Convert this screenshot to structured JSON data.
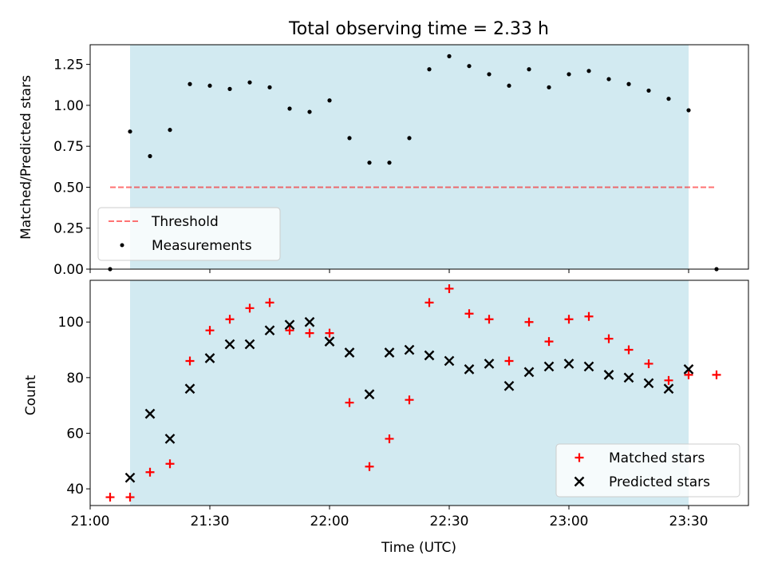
{
  "figure": {
    "title": "Total observing time = 2.33 h",
    "xlabel": "Time (UTC)"
  },
  "colors": {
    "shade": "#add8e6",
    "threshold": "#ff0000",
    "measurements": "#000000",
    "matched": "#ff0000",
    "predicted": "#000000"
  },
  "chart_data": [
    {
      "type": "scatter",
      "panel": "top",
      "ylabel": "Matched/Predicted stars",
      "xlim": [
        "21:00",
        "23:45"
      ],
      "ylim": [
        0.0,
        1.37
      ],
      "yticks": [
        0.0,
        0.25,
        0.5,
        0.75,
        1.0,
        1.25
      ],
      "ytick_labels": [
        "0.00",
        "0.25",
        "0.50",
        "0.75",
        "1.00",
        "1.25"
      ],
      "shaded_span": [
        "21:10",
        "23:30"
      ],
      "legend": {
        "placement": "lower-left",
        "entries": [
          "Threshold",
          "Measurements"
        ]
      },
      "threshold": {
        "name": "Threshold",
        "x": [
          "21:05",
          "23:37"
        ],
        "y": 0.5,
        "style": "dashed"
      },
      "series": [
        {
          "name": "Measurements",
          "x": [
            "21:05",
            "21:10",
            "21:15",
            "21:20",
            "21:25",
            "21:30",
            "21:35",
            "21:40",
            "21:45",
            "21:50",
            "21:55",
            "22:00",
            "22:05",
            "22:10",
            "22:15",
            "22:20",
            "22:25",
            "22:30",
            "22:35",
            "22:40",
            "22:45",
            "22:50",
            "22:55",
            "23:00",
            "23:05",
            "23:10",
            "23:15",
            "23:20",
            "23:25",
            "23:30",
            "23:37"
          ],
          "y": [
            0.0,
            0.84,
            0.69,
            0.85,
            1.13,
            1.12,
            1.1,
            1.14,
            1.11,
            0.98,
            0.96,
            1.03,
            0.8,
            0.65,
            0.65,
            0.8,
            1.22,
            1.3,
            1.24,
            1.19,
            1.12,
            1.22,
            1.11,
            1.19,
            1.21,
            1.16,
            1.13,
            1.09,
            1.04,
            0.97,
            0.0
          ]
        }
      ]
    },
    {
      "type": "scatter",
      "panel": "bottom",
      "ylabel": "Count",
      "xlabel": "Time (UTC)",
      "xlim": [
        "21:00",
        "23:45"
      ],
      "ylim": [
        34,
        115
      ],
      "yticks": [
        40,
        60,
        80,
        100
      ],
      "xticks": [
        "21:00",
        "21:30",
        "22:00",
        "22:30",
        "23:00",
        "23:30"
      ],
      "shaded_span": [
        "21:10",
        "23:30"
      ],
      "legend": {
        "placement": "lower-right",
        "entries": [
          "Matched stars",
          "Predicted stars"
        ]
      },
      "series": [
        {
          "name": "Matched stars",
          "marker": "+",
          "x": [
            "21:05",
            "21:10",
            "21:15",
            "21:20",
            "21:25",
            "21:30",
            "21:35",
            "21:40",
            "21:45",
            "21:50",
            "21:55",
            "22:00",
            "22:05",
            "22:10",
            "22:15",
            "22:20",
            "22:25",
            "22:30",
            "22:35",
            "22:40",
            "22:45",
            "22:50",
            "22:55",
            "23:00",
            "23:05",
            "23:10",
            "23:15",
            "23:20",
            "23:25",
            "23:30",
            "23:37"
          ],
          "y": [
            37,
            37,
            46,
            49,
            86,
            97,
            101,
            105,
            107,
            97,
            96,
            96,
            71,
            48,
            58,
            72,
            107,
            112,
            103,
            101,
            86,
            100,
            93,
            101,
            102,
            94,
            90,
            85,
            79,
            81,
            81
          ]
        },
        {
          "name": "Predicted stars",
          "marker": "x",
          "x": [
            "21:10",
            "21:15",
            "21:20",
            "21:25",
            "21:30",
            "21:35",
            "21:40",
            "21:45",
            "21:50",
            "21:55",
            "22:00",
            "22:05",
            "22:10",
            "22:15",
            "22:20",
            "22:25",
            "22:30",
            "22:35",
            "22:40",
            "22:45",
            "22:50",
            "22:55",
            "23:00",
            "23:05",
            "23:10",
            "23:15",
            "23:20",
            "23:25",
            "23:30"
          ],
          "y": [
            44,
            67,
            58,
            76,
            87,
            92,
            92,
            97,
            99,
            100,
            93,
            89,
            74,
            89,
            90,
            88,
            86,
            83,
            85,
            77,
            82,
            84,
            85,
            84,
            81,
            80,
            78,
            76,
            83
          ]
        }
      ]
    }
  ]
}
